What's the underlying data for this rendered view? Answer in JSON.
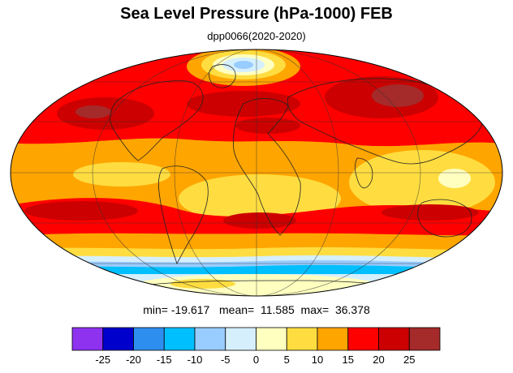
{
  "title": "Sea Level Pressure (hPa-1000) FEB",
  "subtitle": "dpp0066(2020-2020)",
  "stats": {
    "min_label": "min=",
    "min_value": "-19.617",
    "mean_label": "mean=",
    "mean_value": "11.585",
    "max_label": "max=",
    "max_value": "36.378"
  },
  "colorbar": {
    "colors": [
      "#8e32f0",
      "#0000cc",
      "#2e8ef0",
      "#00bfff",
      "#99ccff",
      "#d5effd",
      "#ffffc0",
      "#ffdd40",
      "#ffa500",
      "#ff0000",
      "#cc0000",
      "#a52a2a"
    ],
    "ticks": [
      "-25",
      "-20",
      "-15",
      "-10",
      "-5",
      "0",
      "5",
      "10",
      "15",
      "20",
      "25"
    ]
  },
  "map": {
    "projection": "mollweide"
  }
}
